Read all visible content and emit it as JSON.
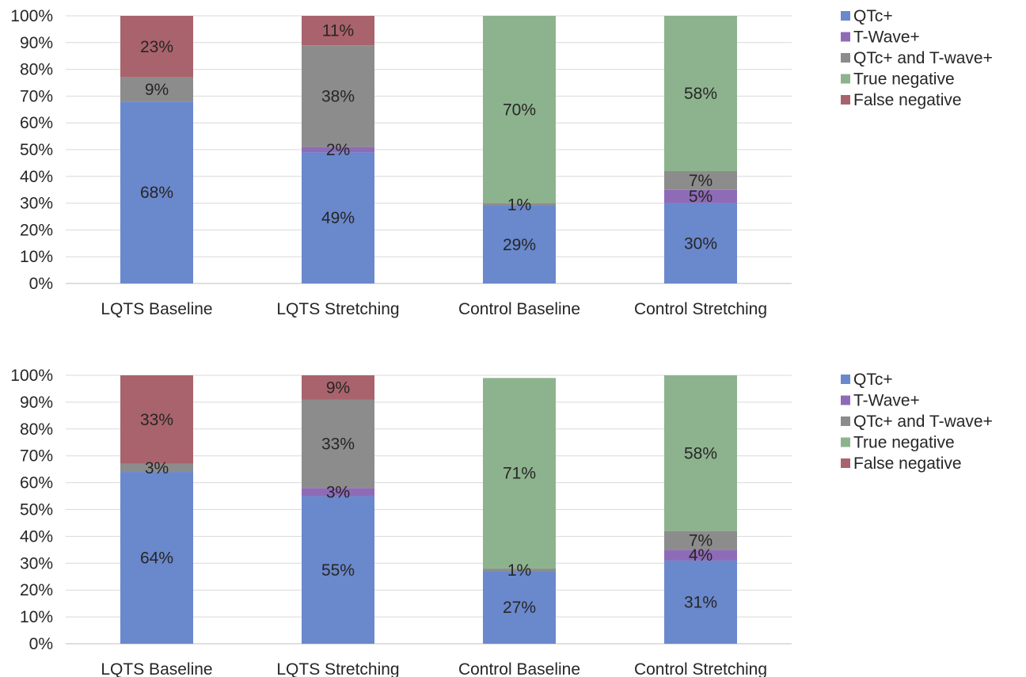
{
  "chart_data": [
    {
      "type": "bar",
      "stacked": true,
      "categories": [
        "LQTS Baseline",
        "LQTS Stretching",
        "Control Baseline",
        "Control Stretching"
      ],
      "ylim": [
        0,
        100
      ],
      "yticks": [
        "0%",
        "10%",
        "20%",
        "30%",
        "40%",
        "50%",
        "60%",
        "70%",
        "80%",
        "90%",
        "100%"
      ],
      "grid": true,
      "legend_position": "right",
      "series": [
        {
          "name": "QTc+",
          "color": "#6a88cc",
          "values": [
            68,
            49,
            29,
            30
          ],
          "labels": [
            "68%",
            "49%",
            "29%",
            "30%"
          ]
        },
        {
          "name": "T-Wave+",
          "color": "#8e6bb7",
          "values": [
            0,
            2,
            0,
            5
          ],
          "labels": [
            "",
            "2%",
            "",
            "5%"
          ]
        },
        {
          "name": "QTc+ and T-wave+",
          "color": "#8c8c8c",
          "values": [
            9,
            38,
            1,
            7
          ],
          "labels": [
            "9%",
            "38%",
            "1%",
            "7%"
          ]
        },
        {
          "name": "True negative",
          "color": "#8db38e",
          "values": [
            0,
            0,
            70,
            58
          ],
          "labels": [
            "",
            "",
            "70%",
            "58%"
          ]
        },
        {
          "name": "False negative",
          "color": "#a9636c",
          "values": [
            23,
            11,
            0,
            0
          ],
          "labels": [
            "23%",
            "11%",
            "",
            ""
          ]
        }
      ]
    },
    {
      "type": "bar",
      "stacked": true,
      "categories": [
        "LQTS Baseline",
        "LQTS Stretching",
        "Control Baseline",
        "Control Stretching"
      ],
      "ylim": [
        0,
        100
      ],
      "yticks": [
        "0%",
        "10%",
        "20%",
        "30%",
        "40%",
        "50%",
        "60%",
        "70%",
        "80%",
        "90%",
        "100%"
      ],
      "grid": true,
      "legend_position": "right",
      "series": [
        {
          "name": "QTc+",
          "color": "#6a88cc",
          "values": [
            64,
            55,
            27,
            31
          ],
          "labels": [
            "64%",
            "55%",
            "27%",
            "31%"
          ]
        },
        {
          "name": "T-Wave+",
          "color": "#8e6bb7",
          "values": [
            0,
            3,
            0,
            4
          ],
          "labels": [
            "",
            "3%",
            "",
            "4%"
          ]
        },
        {
          "name": "QTc+ and T-wave+",
          "color": "#8c8c8c",
          "values": [
            3,
            33,
            1,
            7
          ],
          "labels": [
            "3%",
            "33%",
            "1%",
            "7%"
          ]
        },
        {
          "name": "True negative",
          "color": "#8db38e",
          "values": [
            0,
            0,
            71,
            58
          ],
          "labels": [
            "",
            "",
            "71%",
            "58%"
          ]
        },
        {
          "name": "False negative",
          "color": "#a9636c",
          "values": [
            33,
            9,
            0,
            0
          ],
          "labels": [
            "33%",
            "9%",
            "",
            ""
          ]
        }
      ]
    }
  ]
}
